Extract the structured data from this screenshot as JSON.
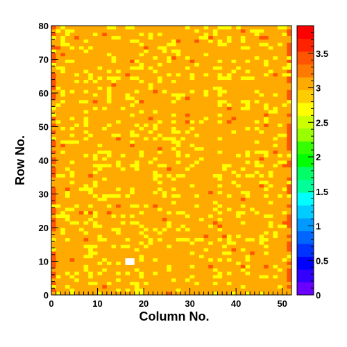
{
  "chart_data": {
    "type": "heatmap",
    "xlabel": "Column No.",
    "ylabel": "Row No.",
    "xlim": [
      0,
      52
    ],
    "ylim": [
      0,
      80
    ],
    "x_ticks": [
      "0",
      "10",
      "20",
      "30",
      "40",
      "50"
    ],
    "y_ticks": [
      "0",
      "10",
      "20",
      "30",
      "40",
      "50",
      "60",
      "70",
      "80"
    ],
    "colorbar": {
      "range": [
        0,
        3.9
      ],
      "tick_values": [
        0,
        0.5,
        1,
        1.5,
        2,
        2.5,
        3,
        3.5
      ],
      "tick_labels": [
        "0",
        "0.5",
        "1",
        "1.5",
        "2",
        "2.5",
        "3",
        "3.5"
      ],
      "colors": [
        "#6a00ff",
        "#3300ff",
        "#0000ff",
        "#0033ff",
        "#0066ff",
        "#0099ff",
        "#00ccff",
        "#00ffff",
        "#00ff99",
        "#00ff66",
        "#00ff00",
        "#33ff00",
        "#99ff00",
        "#ccff00",
        "#ffff00",
        "#ffcc00",
        "#ffaa00",
        "#ff7a00",
        "#ff5500",
        "#ff2200",
        "#ff0000"
      ]
    },
    "dominant_value": 3.3,
    "value_colors": {
      "low": "#ffff00",
      "mid": "#ffaa00",
      "high": "#ff5500"
    },
    "empty_cells": [
      [
        16,
        9
      ],
      [
        17,
        9
      ],
      [
        16,
        10
      ],
      [
        17,
        10
      ]
    ],
    "notes": "Per-cell values (52 x 80 grid) are mostly about 3.3 (orange), with scattered cells near 3.0 (yellow) and cells near 3.7 (dark orange/red) concentrated along the left edge (column 0) and right edge (column 51)."
  }
}
